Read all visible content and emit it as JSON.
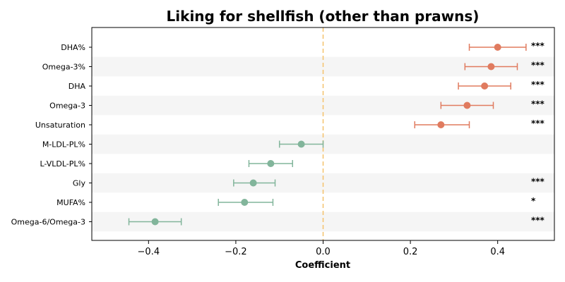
{
  "chart_data": {
    "type": "forest",
    "title": "Liking for shellfish (other than prawns)",
    "xlabel": "Coefficient",
    "xlim": [
      -0.53,
      0.53
    ],
    "xticks": [
      -0.4,
      -0.2,
      0.0,
      0.2,
      0.4
    ],
    "xtick_labels": [
      "−0.4",
      "−0.2",
      "0.0",
      "0.2",
      "0.4"
    ],
    "reference_line": 0.0,
    "colors": {
      "positive": "#e07b5f",
      "negative": "#82b59b",
      "reference": "#f5c26b",
      "band": "#f5f5f5"
    },
    "points": [
      {
        "label": "DHA%",
        "estimate": 0.4,
        "ci_low": 0.335,
        "ci_high": 0.465,
        "significance": "***"
      },
      {
        "label": "Omega-3%",
        "estimate": 0.385,
        "ci_low": 0.325,
        "ci_high": 0.445,
        "significance": "***"
      },
      {
        "label": "DHA",
        "estimate": 0.37,
        "ci_low": 0.31,
        "ci_high": 0.43,
        "significance": "***"
      },
      {
        "label": "Omega-3",
        "estimate": 0.33,
        "ci_low": 0.27,
        "ci_high": 0.39,
        "significance": "***"
      },
      {
        "label": "Unsaturation",
        "estimate": 0.27,
        "ci_low": 0.21,
        "ci_high": 0.335,
        "significance": "***"
      },
      {
        "label": "M-LDL-PL%",
        "estimate": -0.05,
        "ci_low": -0.1,
        "ci_high": 0.0,
        "significance": ""
      },
      {
        "label": "L-VLDL-PL%",
        "estimate": -0.12,
        "ci_low": -0.17,
        "ci_high": -0.07,
        "significance": ""
      },
      {
        "label": "Gly",
        "estimate": -0.16,
        "ci_low": -0.205,
        "ci_high": -0.11,
        "significance": "***"
      },
      {
        "label": "MUFA%",
        "estimate": -0.18,
        "ci_low": -0.24,
        "ci_high": -0.115,
        "significance": "*"
      },
      {
        "label": "Omega-6/Omega-3",
        "estimate": -0.385,
        "ci_low": -0.445,
        "ci_high": -0.325,
        "significance": "***"
      }
    ]
  }
}
